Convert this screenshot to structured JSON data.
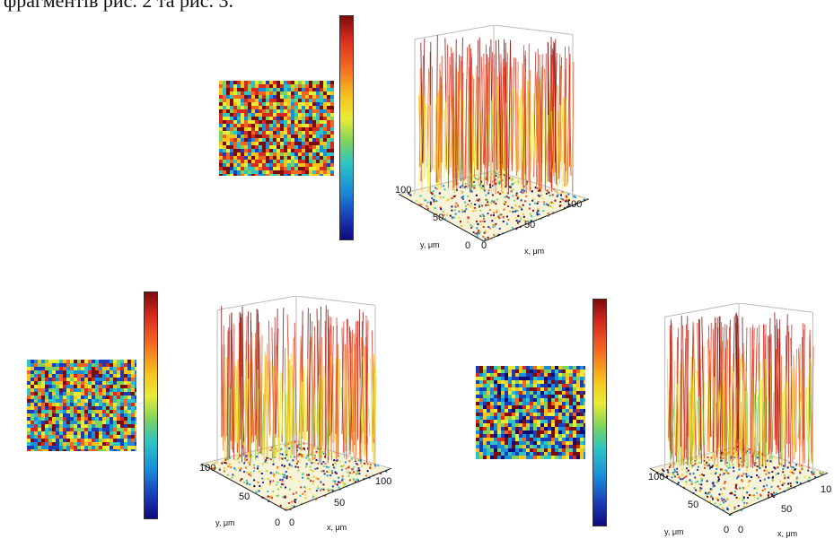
{
  "caption": "фрагментів рис. 2 та рис. 3.",
  "figure": {
    "panels": [
      {
        "id": "top",
        "x_axis": {
          "label": "x, μm",
          "ticks": [
            "0",
            "50",
            "100"
          ]
        },
        "y_axis": {
          "label": "y, μm",
          "ticks": [
            "0",
            "50",
            "100"
          ]
        }
      },
      {
        "id": "bottom-left",
        "x_axis": {
          "label": "x, μm",
          "ticks": [
            "0",
            "50",
            "100"
          ]
        },
        "y_axis": {
          "label": "y, μm",
          "ticks": [
            "0",
            "50",
            "100"
          ]
        }
      },
      {
        "id": "bottom-right",
        "x_axis": {
          "label": "x, μm",
          "ticks": [
            "0",
            "50",
            "10"
          ]
        },
        "y_axis": {
          "label": "y, μm",
          "ticks": [
            "0",
            "50",
            "100"
          ]
        }
      }
    ],
    "colormap": [
      "#0d0a7a",
      "#1b3cb8",
      "#1a8ed8",
      "#2dc5c3",
      "#7fd35c",
      "#e9ec36",
      "#f7c31c",
      "#f26522",
      "#d62a1f",
      "#7a0b0b"
    ]
  }
}
